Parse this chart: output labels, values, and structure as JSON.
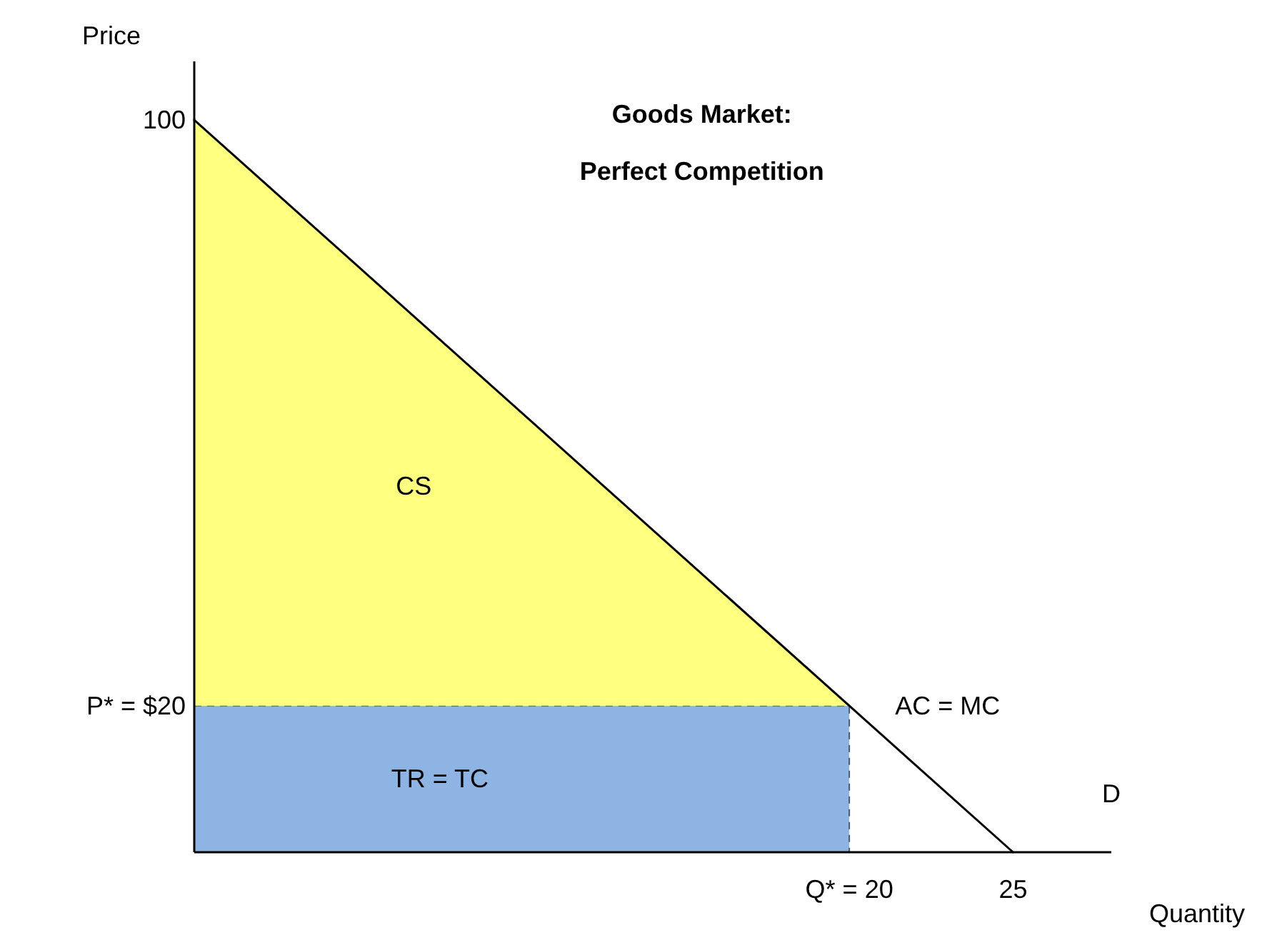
{
  "chart_data": {
    "type": "line",
    "title": "Goods Market:",
    "subtitle": "Perfect Competition",
    "xlabel": "Quantity",
    "ylabel": "Price",
    "xlim": [
      0,
      28
    ],
    "ylim": [
      0,
      108
    ],
    "xticks": [
      {
        "value": 20,
        "label": "Q* = 20"
      },
      25
    ],
    "yticks": [
      100,
      {
        "value": 20,
        "label": "P* = $20"
      }
    ],
    "grid": false,
    "stacked": true,
    "series": [
      {
        "type": "area",
        "color": "#8eb4e3",
        "line_style": "dashed",
        "x": [
          0,
          20
        ],
        "values": [
          20,
          20
        ]
      },
      {
        "type": "area",
        "color": "#ffff80",
        "x": [
          0,
          20
        ],
        "values": [
          80,
          0
        ]
      },
      {
        "color": "#000000",
        "line_style": "solid",
        "x": [
          0,
          25
        ],
        "values": [
          100,
          0
        ]
      }
    ],
    "annotations": [
      "CS",
      "TR = TC",
      "AC = MC",
      "D"
    ]
  }
}
